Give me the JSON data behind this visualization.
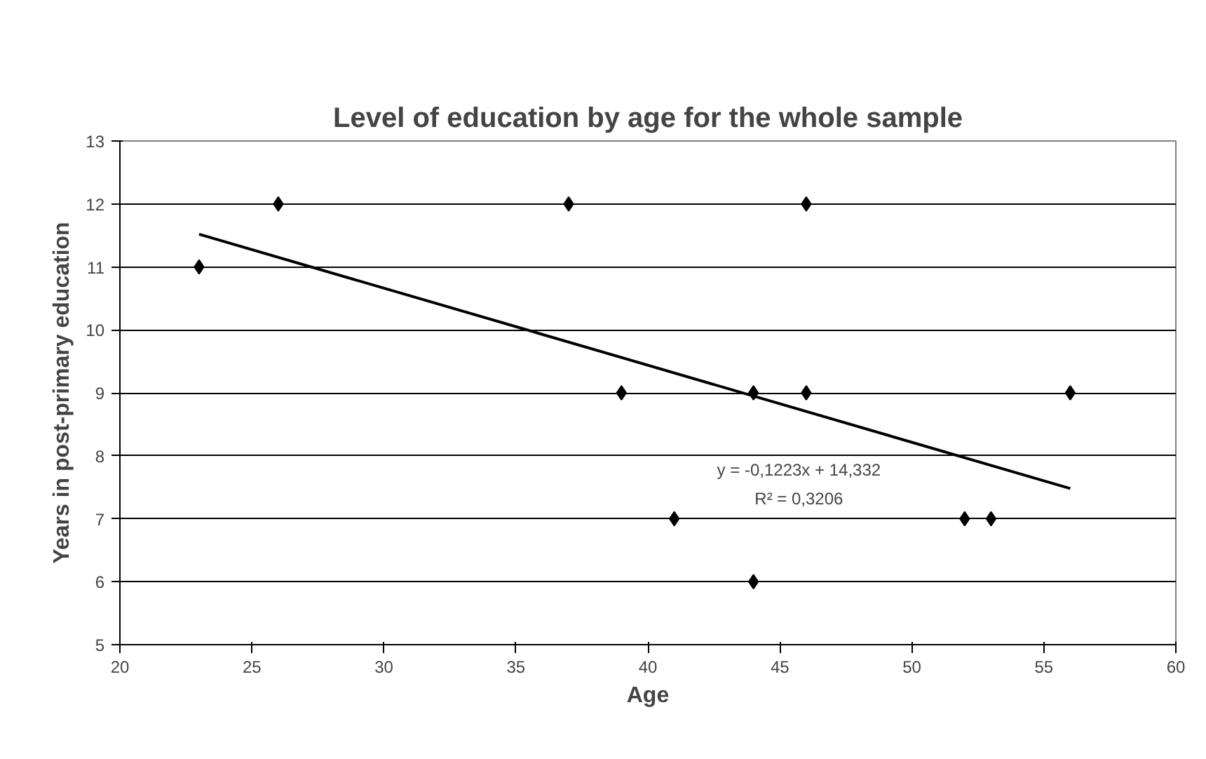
{
  "chart_data": {
    "type": "scatter",
    "title": "Level of education by age for the whole sample",
    "xlabel": "Age",
    "ylabel": "Years in post-primary education",
    "xlim": [
      20,
      60
    ],
    "xticks": [
      20,
      25,
      30,
      35,
      40,
      45,
      50,
      55,
      60
    ],
    "ylim": [
      5,
      13
    ],
    "yticks": [
      5,
      6,
      7,
      8,
      9,
      10,
      11,
      12,
      13
    ],
    "grid": "y",
    "marker": "diamond",
    "series": [
      {
        "color": "#000000",
        "x": [
          23,
          26,
          37,
          46,
          39,
          44,
          46,
          56,
          41,
          52,
          53,
          44
        ],
        "values": [
          11,
          12,
          12,
          12,
          9,
          9,
          9,
          9,
          7,
          7,
          7,
          6
        ]
      },
      {
        "type": "line",
        "color": "#000000",
        "marker": "none",
        "x": [
          23,
          56
        ],
        "values": [
          11.52,
          7.48
        ]
      }
    ],
    "annotations": [
      "y = -0,1223x + 14,332",
      "R² = 0,3206"
    ]
  }
}
